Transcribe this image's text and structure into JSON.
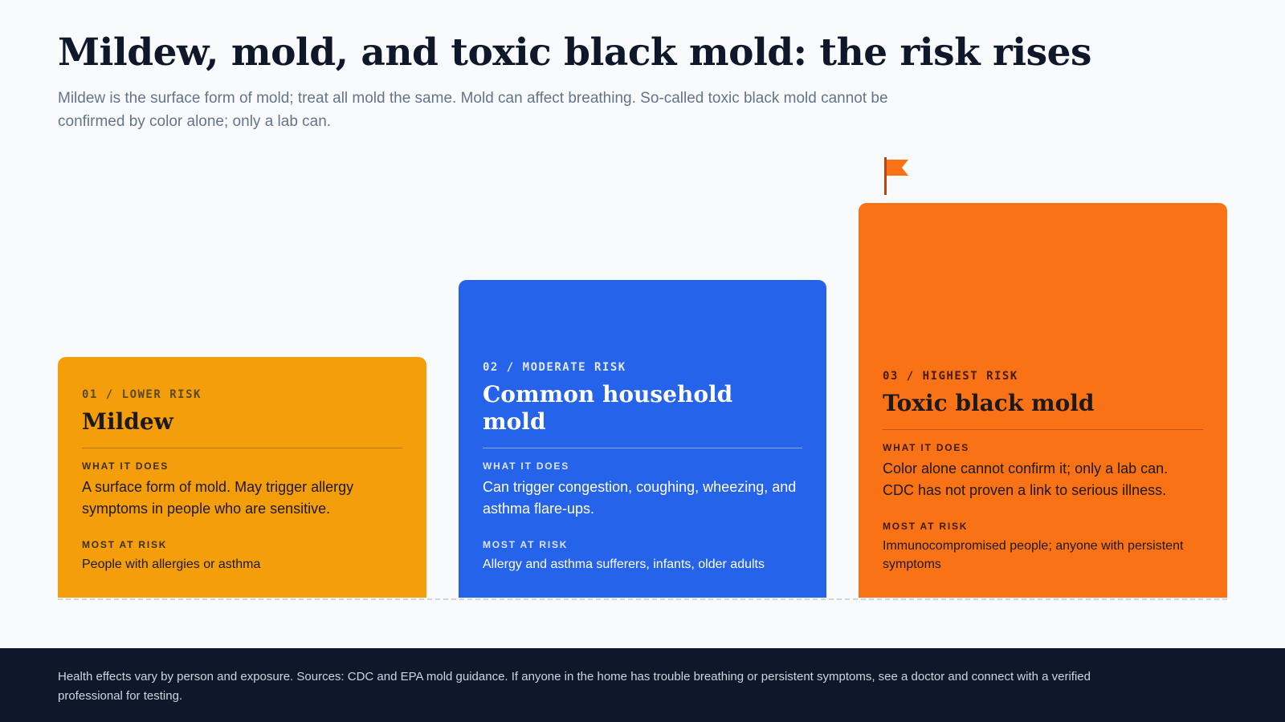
{
  "header": {
    "title": "Mildew, mold, and toxic black mold: the risk rises",
    "subtitle": "Mildew is the surface form of mold; treat all mold the same. Mold can affect breathing. So-called toxic black mold cannot be confirmed by color alone; only a lab can."
  },
  "icons": {
    "highest_marker": "flag-icon"
  },
  "colors": {
    "lower": "#f59e0b",
    "moderate": "#2563eb",
    "highest": "#f97316",
    "flag": "#f97316",
    "footer_bg": "#0f172a"
  },
  "cards": [
    {
      "tier": "01 / LOWER RISK",
      "name": "Mildew",
      "what_label": "WHAT IT DOES",
      "what": "A surface form of mold. May trigger allergy symptoms in people who are sensitive.",
      "risk_label": "MOST AT RISK",
      "risk": "People with allergies or asthma"
    },
    {
      "tier": "02 / MODERATE RISK",
      "name": "Common household mold",
      "what_label": "WHAT IT DOES",
      "what": "Can trigger congestion, coughing, wheezing, and asthma flare-ups.",
      "risk_label": "MOST AT RISK",
      "risk": "Allergy and asthma sufferers, infants, older adults"
    },
    {
      "tier": "03 / HIGHEST RISK",
      "name": "Toxic black mold",
      "what_label": "WHAT IT DOES",
      "what": "Color alone cannot confirm it; only a lab can. CDC has not proven a link to serious illness.",
      "risk_label": "MOST AT RISK",
      "risk": "Immunocompromised people; anyone with persistent symptoms"
    }
  ],
  "footer": {
    "note": "Health effects vary by person and exposure. Sources: CDC and EPA mold guidance. If anyone in the home has trouble breathing or persistent symptoms, see a doctor and connect with a verified professional for testing."
  }
}
